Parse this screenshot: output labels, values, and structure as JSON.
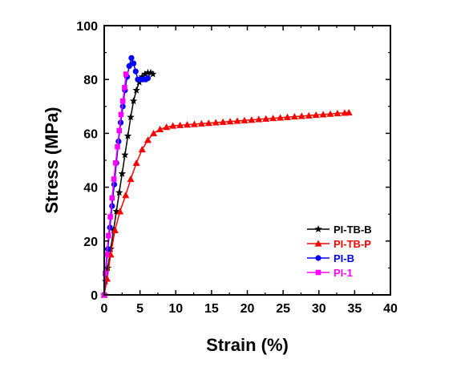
{
  "chart_data": {
    "type": "line",
    "title": "",
    "xlabel": "Strain (%)",
    "ylabel": "Stress (MPa)",
    "xlim": [
      0,
      40
    ],
    "ylim": [
      0,
      100
    ],
    "x_ticks": [
      0,
      5,
      10,
      15,
      20,
      25,
      30,
      35,
      40
    ],
    "y_ticks": [
      0,
      20,
      40,
      60,
      80,
      100
    ],
    "grid": false,
    "legend_position": "bottom-right",
    "series": [
      {
        "name": "PI-TB-B",
        "color": "#000000",
        "marker": "star",
        "points": [
          [
            0,
            0
          ],
          [
            0.2,
            5
          ],
          [
            0.5,
            10
          ],
          [
            0.9,
            17
          ],
          [
            1.3,
            24
          ],
          [
            1.7,
            31
          ],
          [
            2.1,
            38
          ],
          [
            2.5,
            45
          ],
          [
            2.9,
            52
          ],
          [
            3.3,
            59
          ],
          [
            3.7,
            66
          ],
          [
            4.1,
            72
          ],
          [
            4.5,
            76
          ],
          [
            4.9,
            79
          ],
          [
            5.3,
            81
          ],
          [
            5.7,
            82
          ],
          [
            6.1,
            82.5
          ],
          [
            6.5,
            82.5
          ],
          [
            6.8,
            82
          ]
        ]
      },
      {
        "name": "PI-TB-P",
        "color": "#ff0000",
        "marker": "triangle",
        "points": [
          [
            0,
            0
          ],
          [
            0.4,
            6
          ],
          [
            0.9,
            15
          ],
          [
            1.5,
            24
          ],
          [
            2.2,
            31
          ],
          [
            3,
            37
          ],
          [
            3.7,
            43
          ],
          [
            4.5,
            49
          ],
          [
            5.3,
            54
          ],
          [
            6.1,
            57.5
          ],
          [
            6.9,
            60
          ],
          [
            7.8,
            61.5
          ],
          [
            8.7,
            62.3
          ],
          [
            9.6,
            62.8
          ],
          [
            10.6,
            63
          ],
          [
            11.6,
            63.2
          ],
          [
            12.6,
            63.4
          ],
          [
            13.6,
            63.6
          ],
          [
            14.6,
            63.8
          ],
          [
            15.6,
            64
          ],
          [
            16.6,
            64.2
          ],
          [
            17.6,
            64.4
          ],
          [
            18.6,
            64.6
          ],
          [
            19.6,
            64.8
          ],
          [
            20.6,
            65
          ],
          [
            21.6,
            65.2
          ],
          [
            22.6,
            65.4
          ],
          [
            23.6,
            65.6
          ],
          [
            24.6,
            65.8
          ],
          [
            25.6,
            66
          ],
          [
            26.6,
            66.2
          ],
          [
            27.6,
            66.4
          ],
          [
            28.6,
            66.6
          ],
          [
            29.6,
            66.8
          ],
          [
            30.6,
            67
          ],
          [
            31.6,
            67.2
          ],
          [
            32.6,
            67.4
          ],
          [
            33.6,
            67.6
          ],
          [
            34.2,
            67.7
          ]
        ]
      },
      {
        "name": "PI-B",
        "color": "#0000ff",
        "marker": "circle",
        "points": [
          [
            0,
            0
          ],
          [
            0.2,
            8
          ],
          [
            0.5,
            17
          ],
          [
            0.8,
            25
          ],
          [
            1.1,
            33
          ],
          [
            1.4,
            41
          ],
          [
            1.7,
            49
          ],
          [
            2.0,
            57
          ],
          [
            2.3,
            64
          ],
          [
            2.6,
            70
          ],
          [
            2.9,
            76
          ],
          [
            3.2,
            81
          ],
          [
            3.5,
            85
          ],
          [
            3.8,
            88
          ],
          [
            4.1,
            86
          ],
          [
            4.4,
            83
          ],
          [
            4.7,
            80
          ],
          [
            5.0,
            80
          ],
          [
            5.4,
            80
          ],
          [
            5.8,
            80
          ],
          [
            6.1,
            80.5
          ]
        ]
      },
      {
        "name": "PI-1",
        "color": "#ff00ff",
        "marker": "square",
        "points": [
          [
            0,
            0
          ],
          [
            0.15,
            8
          ],
          [
            0.35,
            15
          ],
          [
            0.6,
            22
          ],
          [
            0.85,
            29
          ],
          [
            1.1,
            36
          ],
          [
            1.35,
            43
          ],
          [
            1.6,
            49
          ],
          [
            1.85,
            55
          ],
          [
            2.1,
            61
          ],
          [
            2.35,
            67
          ],
          [
            2.6,
            72
          ],
          [
            2.85,
            77
          ],
          [
            3.05,
            82
          ]
        ]
      }
    ]
  }
}
